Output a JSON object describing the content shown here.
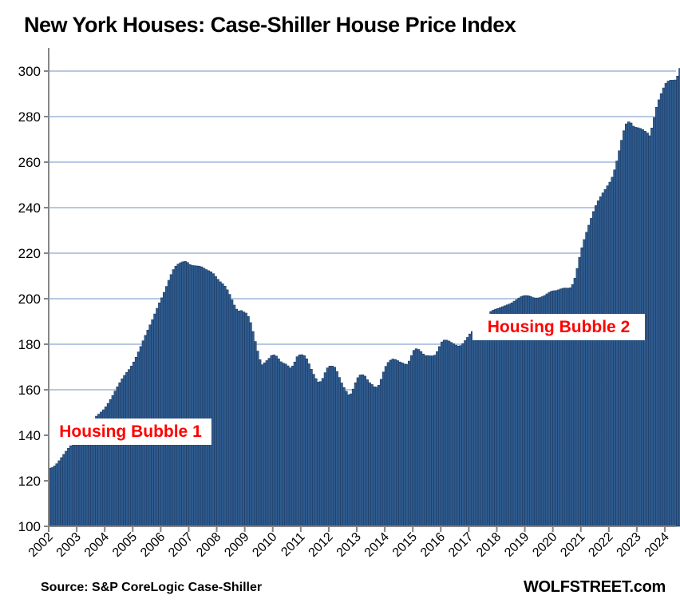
{
  "chart_data": {
    "type": "bar",
    "title": "New York Houses: Case-Shiller House Price Index",
    "xlabel": "",
    "ylabel": "",
    "ylim": [
      100,
      310
    ],
    "yticks": [
      100,
      120,
      140,
      160,
      180,
      200,
      220,
      240,
      260,
      280,
      300
    ],
    "xticks": [
      "2002",
      "2003",
      "2004",
      "2005",
      "2006",
      "2007",
      "2008",
      "2009",
      "2010",
      "2011",
      "2012",
      "2013",
      "2014",
      "2015",
      "2016",
      "2017",
      "2018",
      "2019",
      "2020",
      "2021",
      "2022",
      "2023",
      "2024"
    ],
    "grid": true,
    "start": "2002-01",
    "frequency": "monthly",
    "bar_color": "#2f5b8e",
    "bar_edge_color": "#1c3a63",
    "grid_color": "#b7c9e2",
    "values": [
      125.5,
      125.8,
      126.5,
      127.5,
      128.8,
      130.2,
      131.6,
      133.0,
      134.3,
      135.4,
      136.4,
      137.2,
      138.2,
      139.3,
      140.5,
      141.8,
      143.2,
      144.6,
      146.0,
      147.3,
      148.4,
      149.3,
      150.2,
      151.2,
      152.5,
      154.0,
      155.7,
      157.5,
      159.4,
      161.3,
      163.1,
      164.8,
      166.3,
      167.6,
      168.9,
      170.4,
      172.2,
      174.3,
      176.6,
      179.0,
      181.5,
      183.9,
      186.2,
      188.5,
      190.8,
      193.3,
      195.8,
      198.2,
      200.4,
      202.8,
      205.4,
      208.1,
      210.6,
      212.8,
      214.3,
      215.2,
      215.8,
      216.2,
      216.4,
      215.9,
      215.0,
      214.6,
      214.5,
      214.4,
      214.3,
      214.0,
      213.4,
      212.8,
      212.3,
      211.8,
      211.0,
      209.8,
      208.5,
      207.4,
      206.6,
      205.5,
      203.9,
      201.9,
      199.5,
      197.2,
      195.4,
      194.6,
      194.8,
      194.2,
      193.7,
      192.2,
      189.5,
      185.6,
      181.2,
      177.0,
      173.2,
      171.0,
      171.8,
      172.8,
      173.8,
      175.0,
      175.3,
      174.8,
      173.6,
      172.3,
      171.7,
      171.3,
      170.5,
      169.6,
      170.4,
      172.2,
      174.5,
      175.3,
      175.4,
      175.0,
      173.6,
      171.4,
      169.0,
      166.8,
      164.9,
      163.4,
      163.6,
      165.0,
      167.5,
      169.6,
      170.4,
      170.4,
      169.9,
      168.0,
      165.4,
      163.0,
      161.0,
      159.3,
      157.8,
      158.2,
      160.3,
      163.1,
      165.3,
      166.5,
      166.6,
      166.0,
      164.4,
      163.1,
      162.3,
      161.3,
      161.2,
      162.0,
      164.6,
      167.8,
      170.3,
      172.0,
      173.0,
      173.5,
      173.3,
      172.8,
      172.2,
      171.8,
      171.3,
      171.2,
      172.6,
      175.0,
      177.3,
      178.0,
      177.7,
      176.8,
      175.7,
      175.0,
      175.0,
      174.9,
      174.9,
      175.2,
      176.8,
      179.0,
      181.0,
      181.8,
      181.8,
      181.4,
      180.8,
      180.2,
      179.6,
      179.2,
      179.4,
      180.3,
      181.6,
      183.0,
      184.5,
      185.6,
      186.0,
      185.6,
      185.6,
      186.0,
      186.3,
      186.5,
      190.0,
      194.4,
      195.0,
      195.4,
      195.7,
      196.1,
      196.5,
      196.9,
      197.3,
      197.7,
      198.2,
      198.9,
      199.6,
      200.3,
      200.9,
      201.3,
      201.4,
      201.3,
      201.0,
      200.5,
      200.3,
      200.3,
      200.5,
      200.9,
      201.4,
      202.1,
      202.8,
      203.3,
      203.5,
      203.6,
      203.9,
      204.3,
      204.6,
      204.7,
      204.6,
      204.8,
      206.2,
      209.0,
      213.3,
      218.2,
      222.4,
      226.0,
      229.2,
      232.3,
      235.3,
      238.3,
      240.9,
      243.0,
      244.8,
      246.5,
      248.0,
      249.6,
      251.2,
      253.4,
      256.6,
      260.5,
      265.0,
      269.6,
      273.8,
      276.8,
      277.7,
      277.2,
      275.8,
      275.3,
      275.1,
      274.8,
      274.3,
      273.6,
      272.8,
      271.6,
      275.0,
      279.6,
      284.1,
      287.4,
      290.1,
      292.6,
      294.6,
      295.6,
      296.0,
      296.0,
      296.1,
      297.8,
      301.2,
      305.2
    ],
    "annotations": [
      {
        "text": "Housing Bubble 1",
        "at": "2002-2008",
        "value_level": 140
      },
      {
        "text": "Housing Bubble 2",
        "at": "2017-2023",
        "value_level": 185
      }
    ]
  },
  "footer": {
    "source": "Source: S&P CoreLogic Case-Shiller",
    "brand": "WOLFSTREET.com"
  },
  "colors": {
    "annotation_text": "#ff0000",
    "axis": "#868686"
  }
}
